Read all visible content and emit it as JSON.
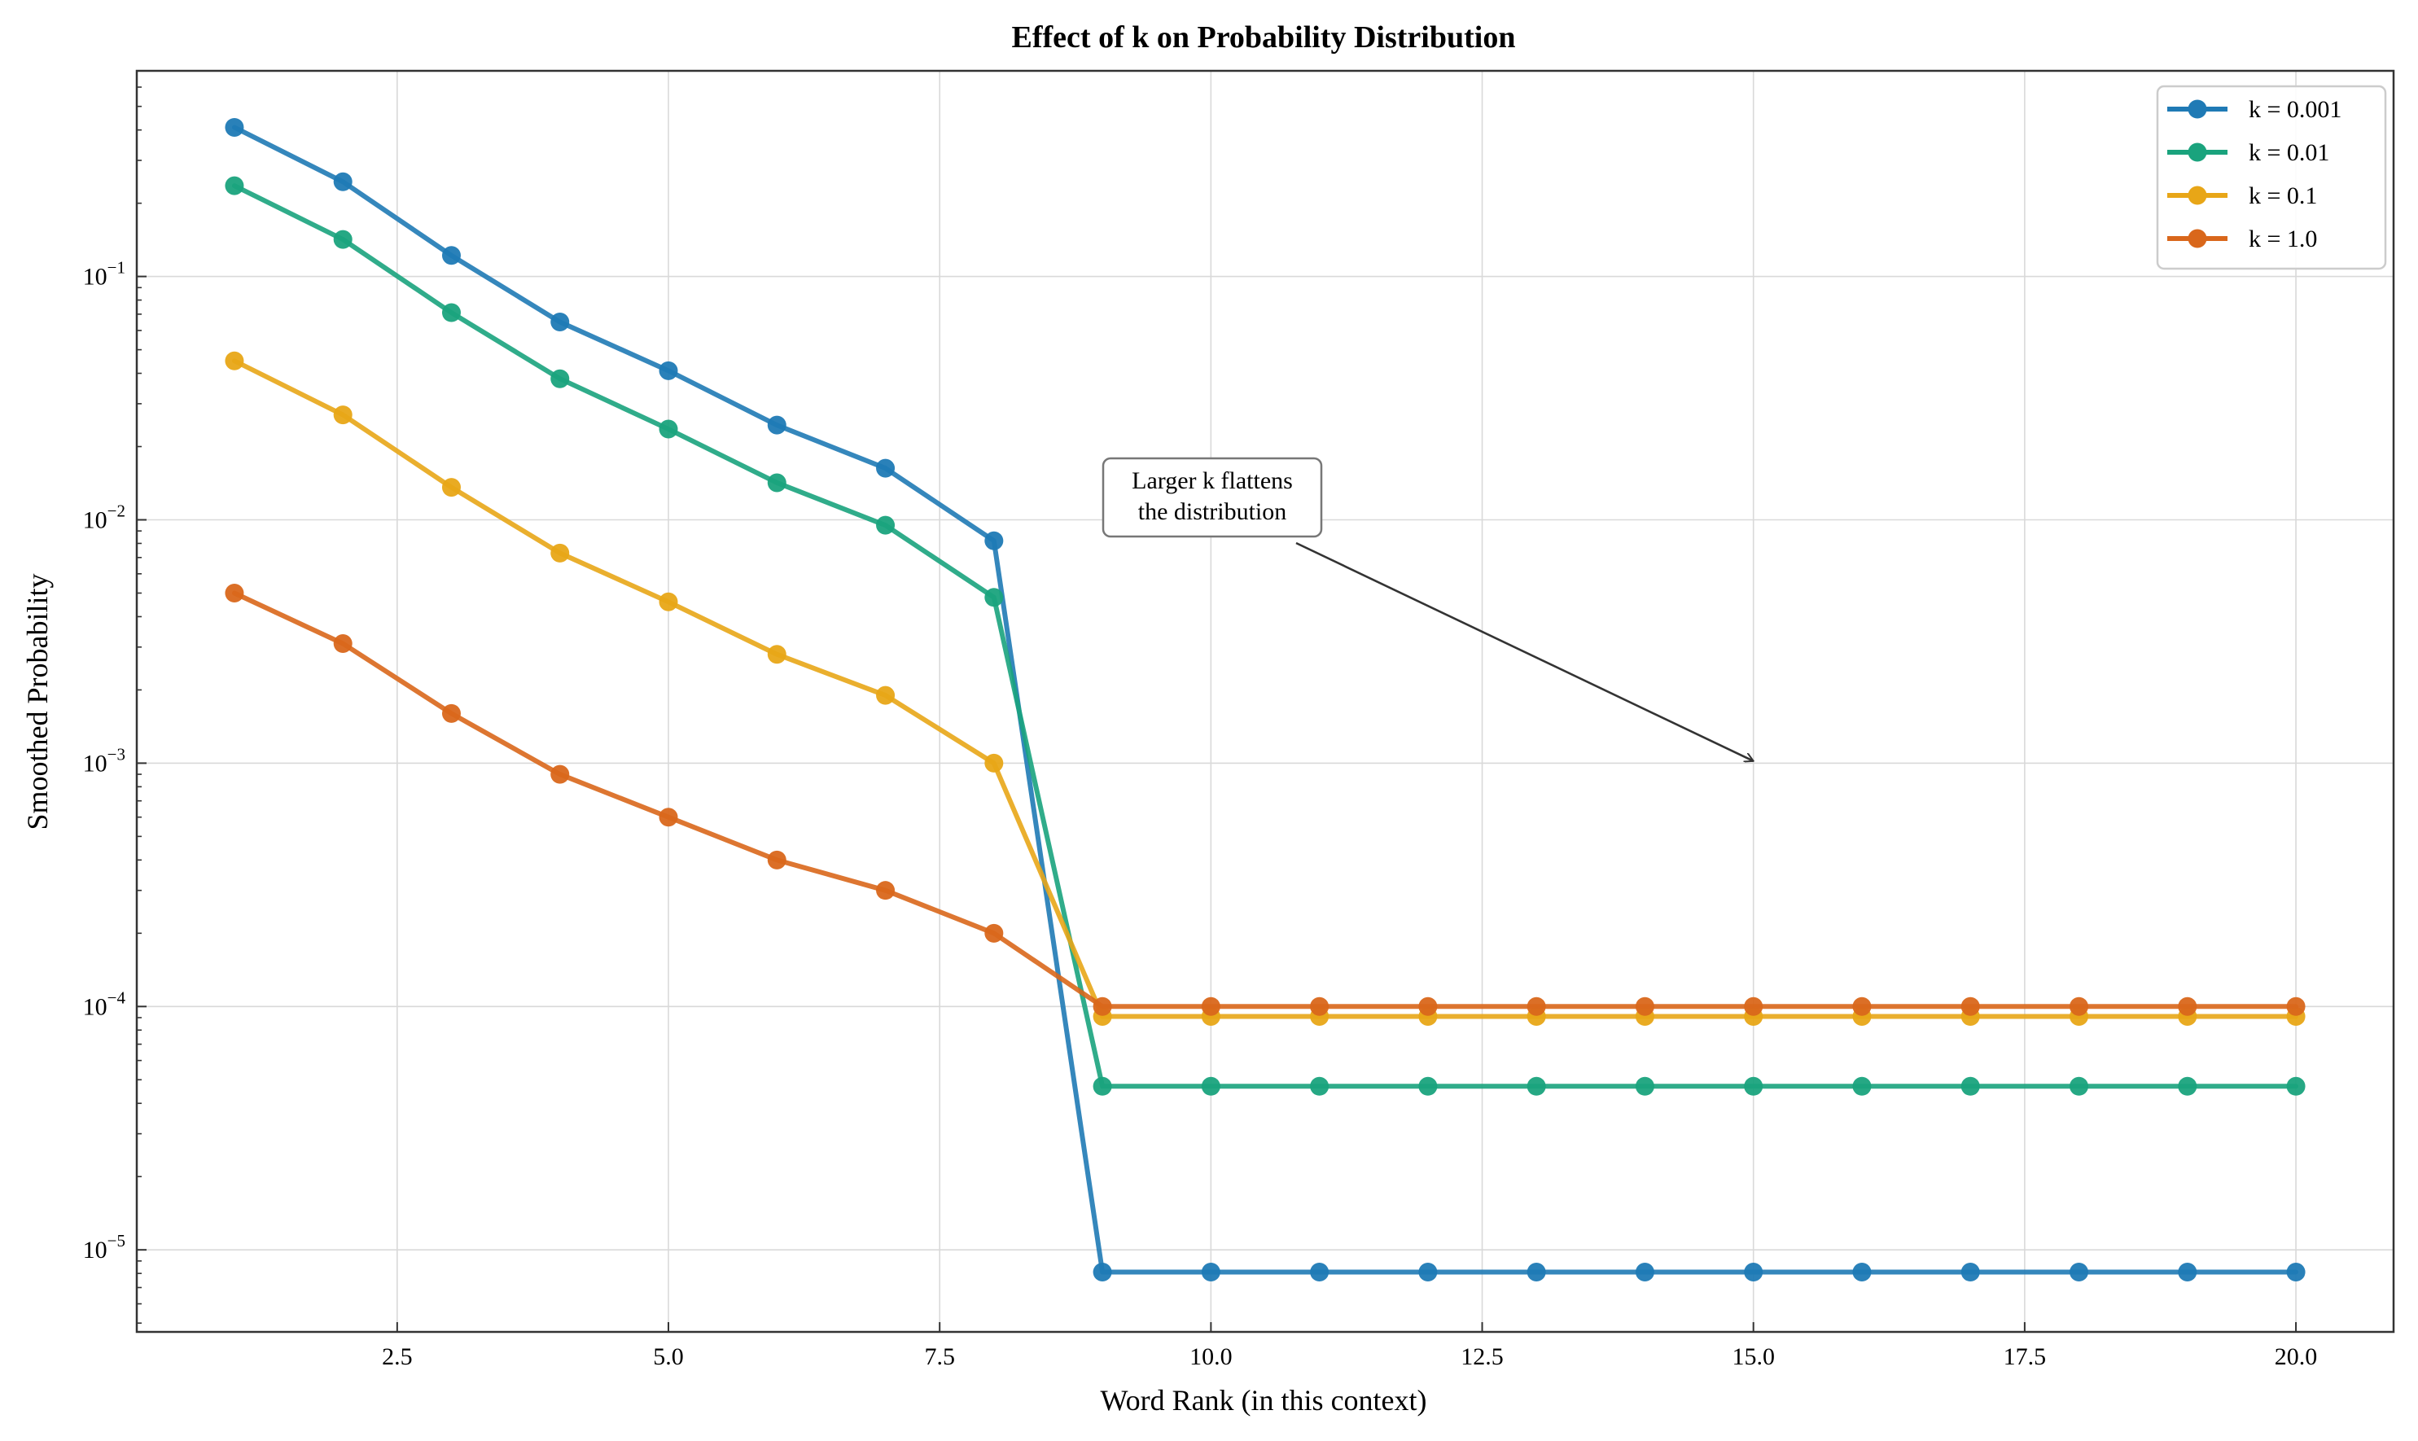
{
  "chart_data": {
    "type": "line",
    "title": "Effect of k on Probability Distribution",
    "xlabel": "Word Rank (in this context)",
    "ylabel": "Smoothed Probability",
    "xlim": [
      0.1,
      20.9
    ],
    "ylim": [
      4.6e-06,
      0.7
    ],
    "yscale": "log",
    "grid": true,
    "legend_position": "top-right",
    "x_ticks": [
      {
        "value": 2.5,
        "label": "2.5"
      },
      {
        "value": 5.0,
        "label": "5.0"
      },
      {
        "value": 7.5,
        "label": "7.5"
      },
      {
        "value": 10.0,
        "label": "10.0"
      },
      {
        "value": 12.5,
        "label": "12.5"
      },
      {
        "value": 15.0,
        "label": "15.0"
      },
      {
        "value": 17.5,
        "label": "17.5"
      },
      {
        "value": 20.0,
        "label": "20.0"
      }
    ],
    "y_ticks": [
      {
        "value": 1e-05,
        "base": "10",
        "exp": "−5"
      },
      {
        "value": 0.0001,
        "base": "10",
        "exp": "−4"
      },
      {
        "value": 0.001,
        "base": "10",
        "exp": "−3"
      },
      {
        "value": 0.01,
        "base": "10",
        "exp": "−2"
      },
      {
        "value": 0.1,
        "base": "10",
        "exp": "−1"
      }
    ],
    "x": [
      1,
      2,
      3,
      4,
      5,
      6,
      7,
      8,
      9,
      10,
      11,
      12,
      13,
      14,
      15,
      16,
      17,
      18,
      19,
      20
    ],
    "series": [
      {
        "name": "k = 0.001",
        "color": "#1f7ab5",
        "values": [
          0.41,
          0.245,
          0.122,
          0.065,
          0.041,
          0.0245,
          0.0163,
          0.0082,
          8.1e-06,
          8.1e-06,
          8.1e-06,
          8.1e-06,
          8.1e-06,
          8.1e-06,
          8.1e-06,
          8.1e-06,
          8.1e-06,
          8.1e-06,
          8.1e-06,
          8.1e-06
        ]
      },
      {
        "name": "k = 0.01",
        "color": "#1aa37d",
        "values": [
          0.236,
          0.142,
          0.071,
          0.038,
          0.0236,
          0.0142,
          0.0095,
          0.0048,
          4.7e-05,
          4.7e-05,
          4.7e-05,
          4.7e-05,
          4.7e-05,
          4.7e-05,
          4.7e-05,
          4.7e-05,
          4.7e-05,
          4.7e-05,
          4.7e-05,
          4.7e-05
        ]
      },
      {
        "name": "k = 0.1",
        "color": "#e8a617",
        "values": [
          0.045,
          0.027,
          0.0136,
          0.0073,
          0.0046,
          0.0028,
          0.0019,
          0.001,
          9.1e-05,
          9.1e-05,
          9.1e-05,
          9.1e-05,
          9.1e-05,
          9.1e-05,
          9.1e-05,
          9.1e-05,
          9.1e-05,
          9.1e-05,
          9.1e-05,
          9.1e-05
        ]
      },
      {
        "name": "k = 1.0",
        "color": "#d9671b",
        "values": [
          0.005,
          0.0031,
          0.0016,
          0.0009,
          0.0006,
          0.0004,
          0.0003,
          0.0002,
          0.0001,
          0.0001,
          0.0001,
          0.0001,
          0.0001,
          0.0001,
          0.0001,
          0.0001,
          0.0001,
          0.0001,
          0.0001,
          0.0001
        ]
      }
    ],
    "annotation": {
      "lines": [
        "Larger k flattens",
        "the distribution"
      ],
      "text_at": {
        "x": 10.0,
        "y": 0.0115
      },
      "arrow_to": {
        "x": 15.0,
        "y": 0.00102
      }
    }
  }
}
